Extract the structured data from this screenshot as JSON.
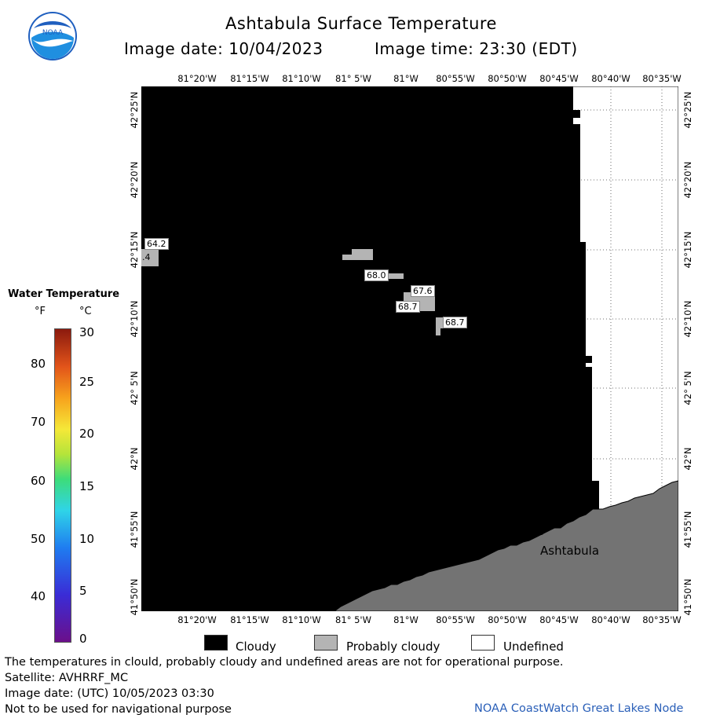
{
  "header": {
    "title": "Ashtabula Surface Temperature",
    "image_date": "Image date: 10/04/2023",
    "image_time": "Image time: 23:30 (EDT)"
  },
  "axes": {
    "longitude_ticks": [
      "81°20'W",
      "81°15'W",
      "81°10'W",
      "81° 5'W",
      "81°W",
      "80°55'W",
      "80°50'W",
      "80°45'W",
      "80°40'W",
      "80°35'W"
    ],
    "latitude_ticks": [
      "42°25'N",
      "42°20'N",
      "42°15'N",
      "42°10'N",
      "42° 5'N",
      "42°N",
      "41°55'N",
      "41°50'N"
    ]
  },
  "map": {
    "place_label": "Ashtabula",
    "temperature_labels": [
      "64.2",
      ".4",
      "68.0",
      "67.6",
      "68.7",
      "68.7"
    ]
  },
  "color_scale": {
    "title": "Water Temperature",
    "unit_f": "°F",
    "unit_c": "°C",
    "fahrenheit": [
      "80",
      "70",
      "60",
      "50",
      "40"
    ],
    "celsius": [
      "30",
      "25",
      "20",
      "15",
      "10",
      "5",
      "0"
    ]
  },
  "legend": {
    "cloudy": "Cloudy",
    "probably_cloudy": "Probably cloudy",
    "undefined": "Undefined"
  },
  "footer": {
    "note": "The temperatures in clould, probably cloudy and undefined areas are not for operational purpose.",
    "satellite": "Satellite: AVHRRF_MC",
    "utc_date": "Image date: (UTC) 10/05/2023  03:30",
    "disclaimer": "Not to be used for navigational purpose",
    "credit": "NOAA CoastWatch Great Lakes Node"
  },
  "colors": {
    "cloudy": "#000000",
    "probably_cloudy": "#b4b4b4",
    "land": "#737373",
    "undefined": "#ffffff",
    "credit_text": "#2a5fb8"
  }
}
